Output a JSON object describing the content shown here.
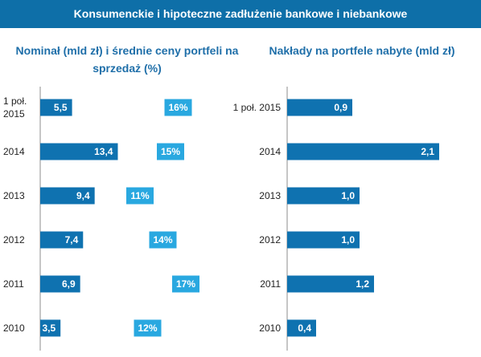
{
  "banner": {
    "title": "Konsumenckie i hipoteczne zadłużenie bankowe i niebankowe"
  },
  "colors": {
    "banner": "#0e6fa8",
    "bar": "#0f72b0",
    "pct_box": "#29a8e0",
    "subtitle": "#1f6fa9"
  },
  "chart_data": [
    {
      "type": "bar",
      "orientation": "horizontal",
      "title": "Nominał (mld zł) i średnie ceny portfeli na sprzedaż (%)",
      "categories": [
        "1 poł. 2015",
        "2014",
        "2013",
        "2012",
        "2011",
        "2010"
      ],
      "series": [
        {
          "values": [
            5.5,
            13.4,
            9.4,
            7.4,
            6.9,
            3.5
          ],
          "labels": [
            "5,5",
            "13,4",
            "9,4",
            "7,4",
            "6,9",
            "3,5"
          ]
        }
      ],
      "price_percent": [
        16,
        15,
        11,
        14,
        17,
        12
      ],
      "price_labels": [
        "16%",
        "15%",
        "11%",
        "14%",
        "17%",
        "12%"
      ],
      "xlim": [
        0,
        14
      ]
    },
    {
      "type": "bar",
      "orientation": "horizontal",
      "title": "Nakłady na portfele nabyte (mld zł)",
      "categories": [
        "1 poł. 2015",
        "2014",
        "2013",
        "2012",
        "2011",
        "2010"
      ],
      "series": [
        {
          "values": [
            0.9,
            2.1,
            1.0,
            1.0,
            1.2,
            0.4
          ],
          "labels": [
            "0,9",
            "2,1",
            "1,0",
            "1,0",
            "1,2",
            "0,4"
          ]
        }
      ],
      "xlim": [
        0,
        2.2
      ]
    }
  ]
}
